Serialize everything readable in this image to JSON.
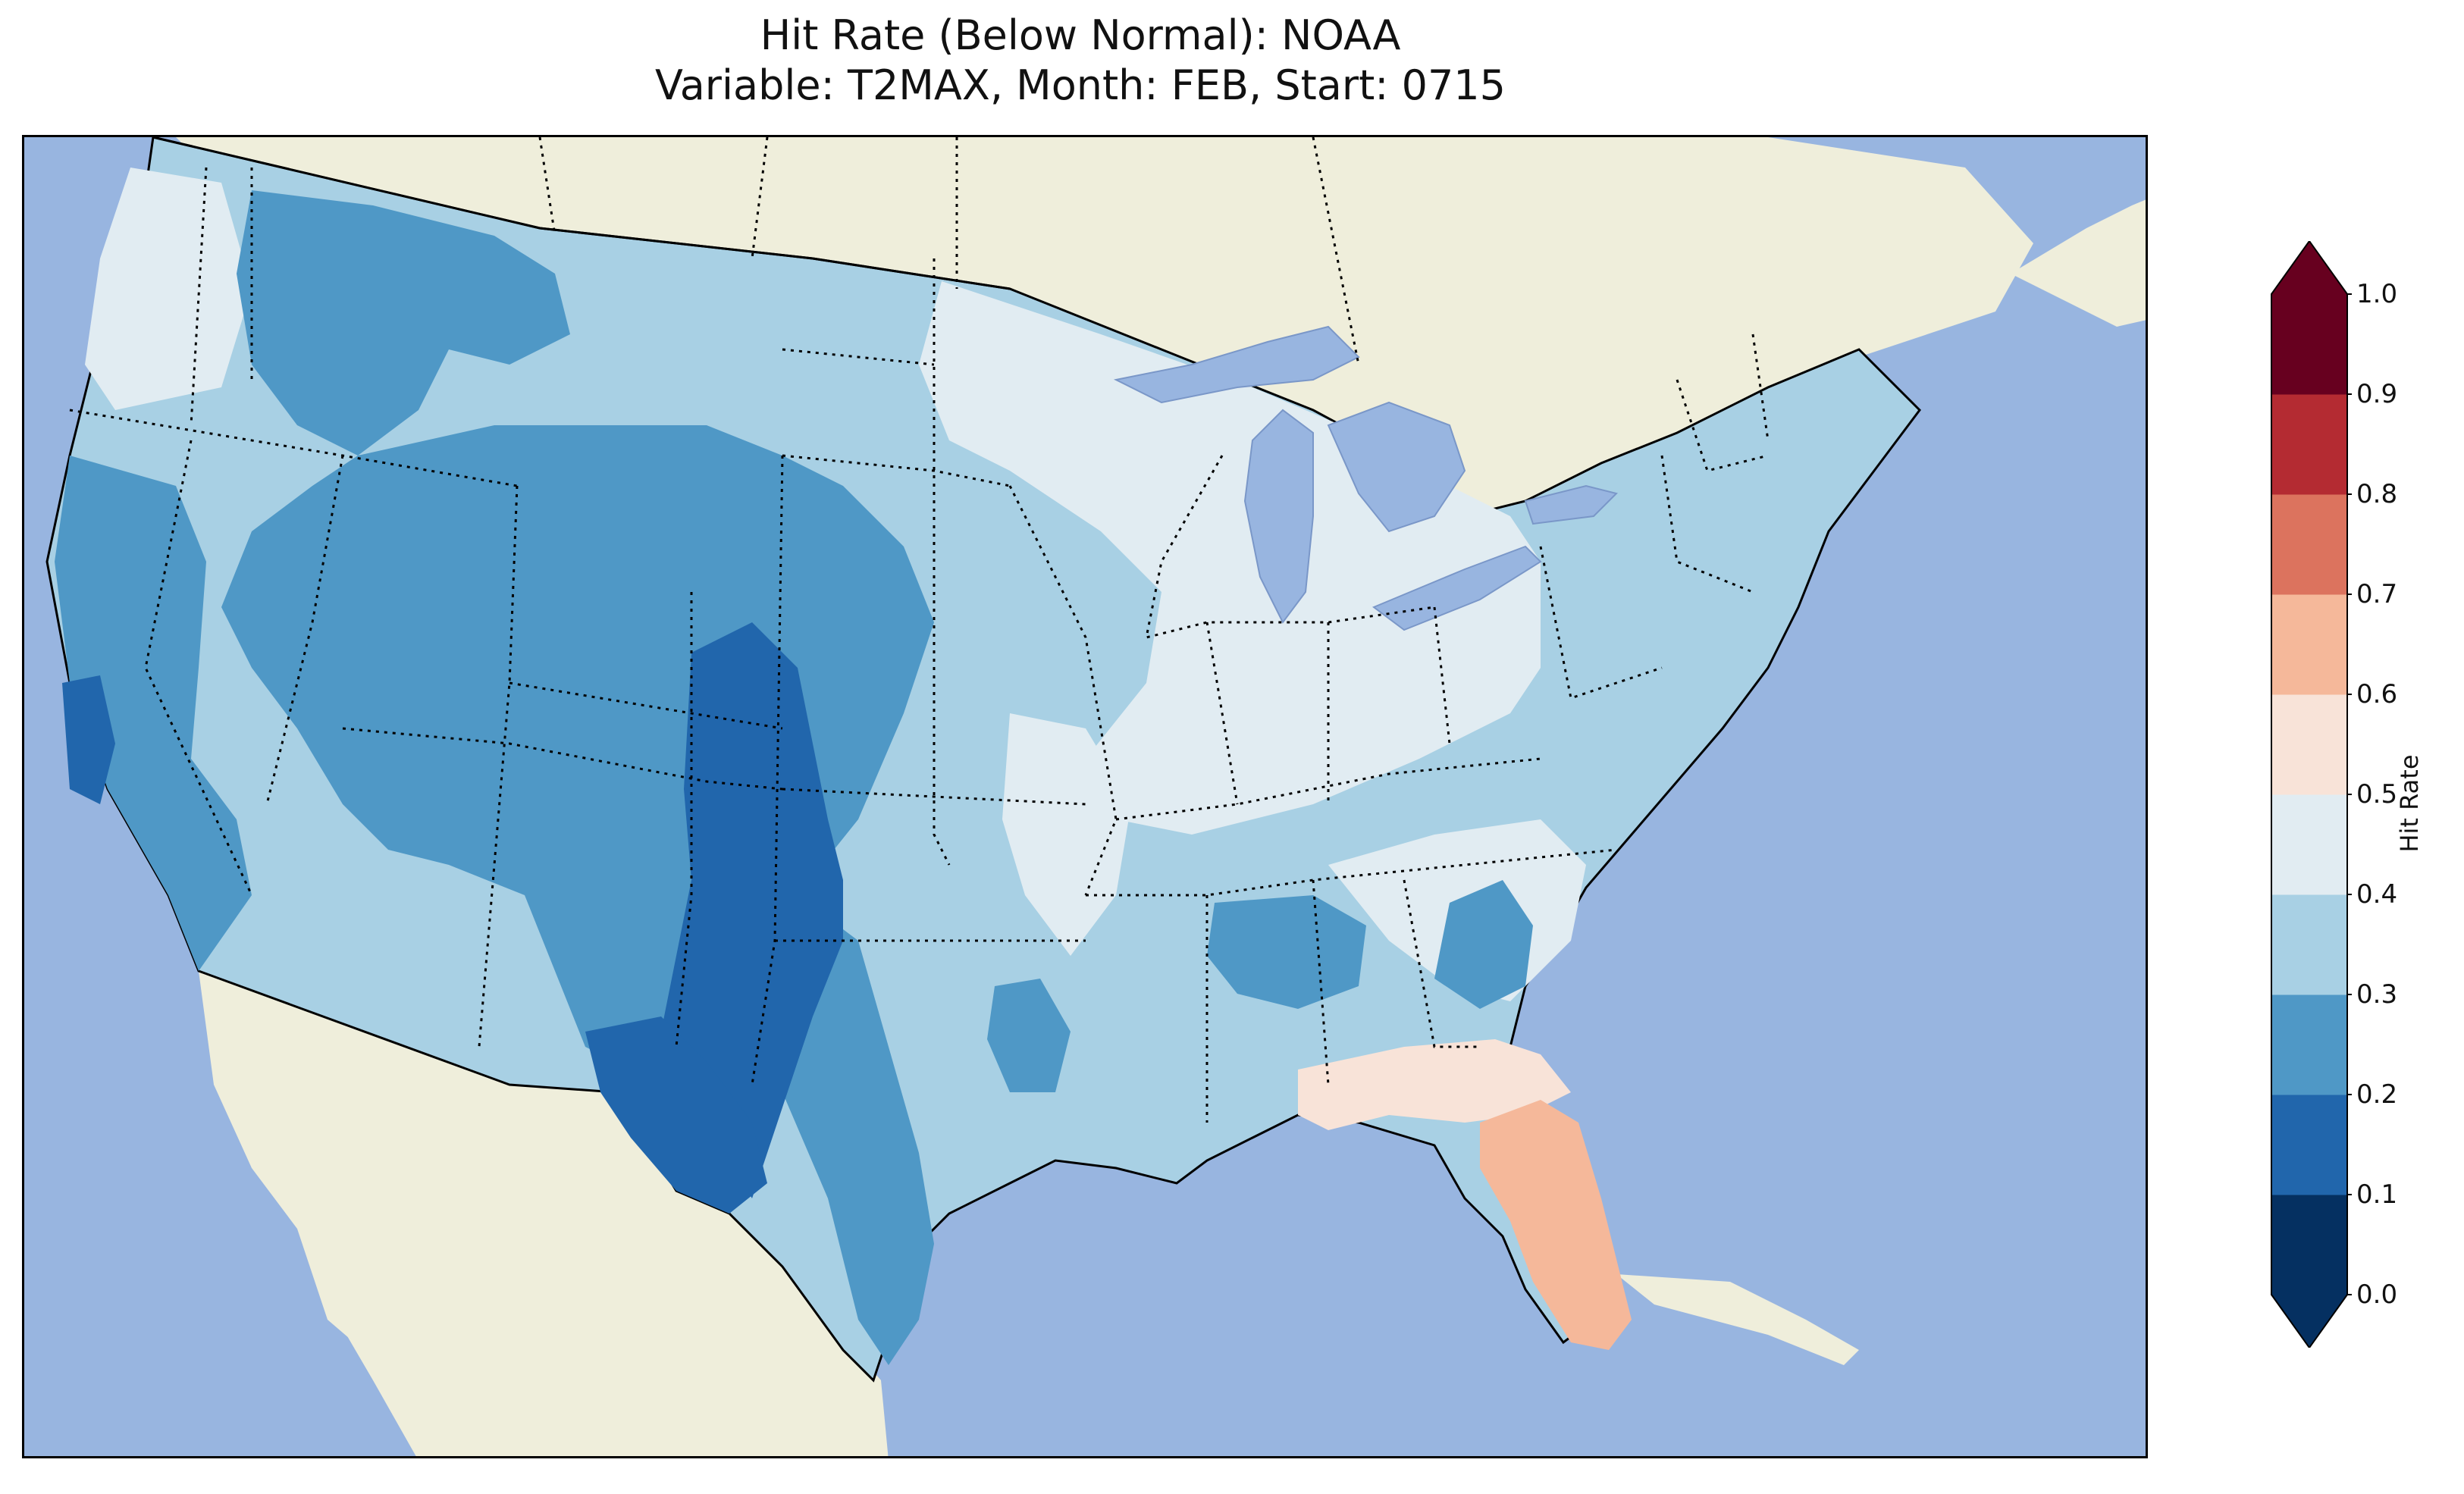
{
  "title": {
    "line1": "Hit Rate (Below Normal): NOAA",
    "line2": "Variable: T2MAX, Month: FEB, Start: 0715"
  },
  "colors": {
    "ocean": "#98b5e0",
    "land": "#efeedb",
    "lakes": "#98b5e0"
  },
  "colorbar": {
    "label": "Hit Rate",
    "ticks": [
      "0.0",
      "0.1",
      "0.2",
      "0.3",
      "0.4",
      "0.5",
      "0.6",
      "0.7",
      "0.8",
      "0.9",
      "1.0"
    ],
    "bins": [
      {
        "range": [
          0.0,
          0.1
        ],
        "color": "#053061"
      },
      {
        "range": [
          0.1,
          0.2
        ],
        "color": "#2166ac"
      },
      {
        "range": [
          0.2,
          0.3
        ],
        "color": "#4f98c6"
      },
      {
        "range": [
          0.3,
          0.4
        ],
        "color": "#a8d0e4"
      },
      {
        "range": [
          0.4,
          0.5
        ],
        "color": "#e1ecf2"
      },
      {
        "range": [
          0.5,
          0.6
        ],
        "color": "#f8e3d8"
      },
      {
        "range": [
          0.6,
          0.7
        ],
        "color": "#f5b89a"
      },
      {
        "range": [
          0.7,
          0.8
        ],
        "color": "#dc735e"
      },
      {
        "range": [
          0.8,
          0.9
        ],
        "color": "#b42b32"
      },
      {
        "range": [
          0.9,
          1.0
        ],
        "color": "#67001f"
      }
    ],
    "extend": "both"
  },
  "map_regions": [
    {
      "name": "pacific-northwest-coast",
      "value_bin": "0.4-0.5"
    },
    {
      "name": "great-lakes-midwest",
      "value_bin": "0.4-0.5"
    },
    {
      "name": "northern-rockies",
      "value_bin": "0.2-0.3"
    },
    {
      "name": "central-rockies",
      "value_bin": "0.2-0.3"
    },
    {
      "name": "southern-rockies-new-mexico-west-texas",
      "value_bin": "0.1-0.2"
    },
    {
      "name": "central-california-coast",
      "value_bin": "0.1-0.2"
    },
    {
      "name": "florida-peninsula",
      "value_bin": "0.6-0.7"
    },
    {
      "name": "gulf-coast-panhandle",
      "value_bin": "0.5-0.6"
    },
    {
      "name": "southeast-mid-south-spots",
      "value_bin": "0.2-0.3"
    }
  ]
}
